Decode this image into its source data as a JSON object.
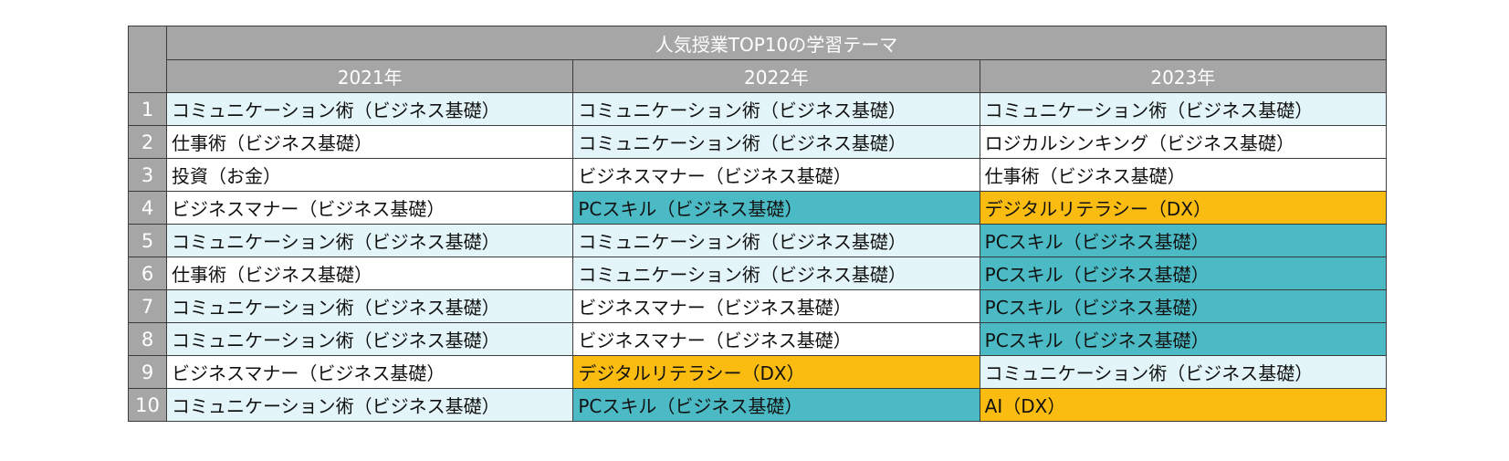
{
  "table": {
    "title": "人気授業TOP10の学習テーマ",
    "years": [
      "2021年",
      "2022年",
      "2023年"
    ],
    "colors": {
      "header_bg": "#a6a6a6",
      "light": "#e3f5f8",
      "white": "#ffffff",
      "teal": "#4cbac4",
      "gold": "#fbbc12"
    },
    "rows": [
      {
        "rank": "1",
        "cells": [
          {
            "text": "コミュニケーション術（ビジネス基礎）",
            "color": "light"
          },
          {
            "text": "コミュニケーション術（ビジネス基礎）",
            "color": "light"
          },
          {
            "text": "コミュニケーション術（ビジネス基礎）",
            "color": "light"
          }
        ]
      },
      {
        "rank": "2",
        "cells": [
          {
            "text": "仕事術（ビジネス基礎）",
            "color": "white"
          },
          {
            "text": "コミュニケーション術（ビジネス基礎）",
            "color": "light"
          },
          {
            "text": "ロジカルシンキング（ビジネス基礎）",
            "color": "white"
          }
        ]
      },
      {
        "rank": "3",
        "cells": [
          {
            "text": "投資（お金）",
            "color": "white"
          },
          {
            "text": "ビジネスマナー（ビジネス基礎）",
            "color": "white"
          },
          {
            "text": "仕事術（ビジネス基礎）",
            "color": "white"
          }
        ]
      },
      {
        "rank": "4",
        "cells": [
          {
            "text": "ビジネスマナー（ビジネス基礎）",
            "color": "white"
          },
          {
            "text": "PCスキル（ビジネス基礎）",
            "color": "teal"
          },
          {
            "text": "デジタルリテラシー（DX）",
            "color": "gold"
          }
        ]
      },
      {
        "rank": "5",
        "cells": [
          {
            "text": "コミュニケーション術（ビジネス基礎）",
            "color": "light"
          },
          {
            "text": "コミュニケーション術（ビジネス基礎）",
            "color": "light"
          },
          {
            "text": "PCスキル（ビジネス基礎）",
            "color": "teal"
          }
        ]
      },
      {
        "rank": "6",
        "cells": [
          {
            "text": "仕事術（ビジネス基礎）",
            "color": "white"
          },
          {
            "text": "コミュニケーション術（ビジネス基礎）",
            "color": "light"
          },
          {
            "text": "PCスキル（ビジネス基礎）",
            "color": "teal"
          }
        ]
      },
      {
        "rank": "7",
        "cells": [
          {
            "text": "コミュニケーション術（ビジネス基礎）",
            "color": "light"
          },
          {
            "text": "ビジネスマナー（ビジネス基礎）",
            "color": "white"
          },
          {
            "text": "PCスキル（ビジネス基礎）",
            "color": "teal"
          }
        ]
      },
      {
        "rank": "8",
        "cells": [
          {
            "text": "コミュニケーション術（ビジネス基礎）",
            "color": "light"
          },
          {
            "text": "ビジネスマナー（ビジネス基礎）",
            "color": "white"
          },
          {
            "text": "PCスキル（ビジネス基礎）",
            "color": "teal"
          }
        ]
      },
      {
        "rank": "9",
        "cells": [
          {
            "text": "ビジネスマナー（ビジネス基礎）",
            "color": "white"
          },
          {
            "text": "デジタルリテラシー（DX）",
            "color": "gold"
          },
          {
            "text": "コミュニケーション術（ビジネス基礎）",
            "color": "light"
          }
        ]
      },
      {
        "rank": "10",
        "cells": [
          {
            "text": "コミュニケーション術（ビジネス基礎）",
            "color": "light"
          },
          {
            "text": "PCスキル（ビジネス基礎）",
            "color": "teal"
          },
          {
            "text": "AI（DX）",
            "color": "gold"
          }
        ]
      }
    ]
  }
}
